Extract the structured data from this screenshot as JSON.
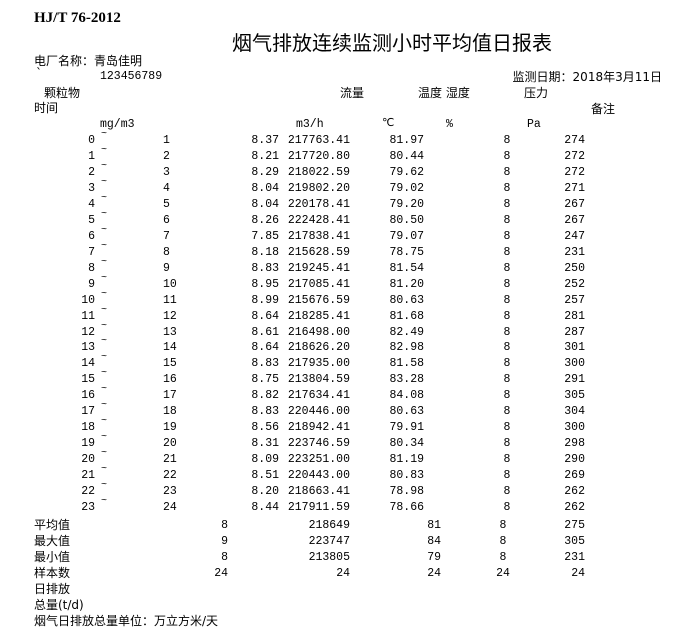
{
  "header": {
    "standard": "HJ/T 76-2012",
    "title": "烟气排放连续监测小时平均值日报表",
    "plant_label": "电厂名称：青岛佳明",
    "mark": "`",
    "id": "123456789",
    "date_label": "监测日期：2018年3月11日"
  },
  "columns": {
    "particulate": "颗粒物",
    "flow": "流量",
    "temp_humidity": "温度 湿度",
    "pressure": "压力",
    "time": "时间",
    "remark": "备注",
    "unit_particulate": "mg/m3",
    "unit_flow": "m3/h",
    "unit_temp": "℃",
    "unit_humidity": "%",
    "unit_pressure": "Pa"
  },
  "rows": [
    {
      "start": "0",
      "sep": "~",
      "end": "1",
      "particulate": "8.37",
      "flow": "217763.41",
      "temp": "81.97",
      "humidity": "8",
      "pressure": "274"
    },
    {
      "start": "1",
      "sep": "~",
      "end": "2",
      "particulate": "8.21",
      "flow": "217720.80",
      "temp": "80.44",
      "humidity": "8",
      "pressure": "272"
    },
    {
      "start": "2",
      "sep": "~",
      "end": "3",
      "particulate": "8.29",
      "flow": "218022.59",
      "temp": "79.62",
      "humidity": "8",
      "pressure": "272"
    },
    {
      "start": "3",
      "sep": "~",
      "end": "4",
      "particulate": "8.04",
      "flow": "219802.20",
      "temp": "79.02",
      "humidity": "8",
      "pressure": "271"
    },
    {
      "start": "4",
      "sep": "~",
      "end": "5",
      "particulate": "8.04",
      "flow": "220178.41",
      "temp": "79.20",
      "humidity": "8",
      "pressure": "267"
    },
    {
      "start": "5",
      "sep": "~",
      "end": "6",
      "particulate": "8.26",
      "flow": "222428.41",
      "temp": "80.50",
      "humidity": "8",
      "pressure": "267"
    },
    {
      "start": "6",
      "sep": "~",
      "end": "7",
      "particulate": "7.85",
      "flow": "217838.41",
      "temp": "79.07",
      "humidity": "8",
      "pressure": "247"
    },
    {
      "start": "7",
      "sep": "~",
      "end": "8",
      "particulate": "8.18",
      "flow": "215628.59",
      "temp": "78.75",
      "humidity": "8",
      "pressure": "231"
    },
    {
      "start": "8",
      "sep": "~",
      "end": "9",
      "particulate": "8.83",
      "flow": "219245.41",
      "temp": "81.54",
      "humidity": "8",
      "pressure": "250"
    },
    {
      "start": "9",
      "sep": "~",
      "end": "10",
      "particulate": "8.95",
      "flow": "217085.41",
      "temp": "81.20",
      "humidity": "8",
      "pressure": "252"
    },
    {
      "start": "10",
      "sep": "~",
      "end": "11",
      "particulate": "8.99",
      "flow": "215676.59",
      "temp": "80.63",
      "humidity": "8",
      "pressure": "257"
    },
    {
      "start": "11",
      "sep": "~",
      "end": "12",
      "particulate": "8.64",
      "flow": "218285.41",
      "temp": "81.68",
      "humidity": "8",
      "pressure": "281"
    },
    {
      "start": "12",
      "sep": "~",
      "end": "13",
      "particulate": "8.61",
      "flow": "216498.00",
      "temp": "82.49",
      "humidity": "8",
      "pressure": "287"
    },
    {
      "start": "13",
      "sep": "~",
      "end": "14",
      "particulate": "8.64",
      "flow": "218626.20",
      "temp": "82.98",
      "humidity": "8",
      "pressure": "301"
    },
    {
      "start": "14",
      "sep": "~",
      "end": "15",
      "particulate": "8.83",
      "flow": "217935.00",
      "temp": "81.58",
      "humidity": "8",
      "pressure": "300"
    },
    {
      "start": "15",
      "sep": "~",
      "end": "16",
      "particulate": "8.75",
      "flow": "213804.59",
      "temp": "83.28",
      "humidity": "8",
      "pressure": "291"
    },
    {
      "start": "16",
      "sep": "~",
      "end": "17",
      "particulate": "8.82",
      "flow": "217634.41",
      "temp": "84.08",
      "humidity": "8",
      "pressure": "305"
    },
    {
      "start": "17",
      "sep": "~",
      "end": "18",
      "particulate": "8.83",
      "flow": "220446.00",
      "temp": "80.63",
      "humidity": "8",
      "pressure": "304"
    },
    {
      "start": "18",
      "sep": "~",
      "end": "19",
      "particulate": "8.56",
      "flow": "218942.41",
      "temp": "79.91",
      "humidity": "8",
      "pressure": "300"
    },
    {
      "start": "19",
      "sep": "~",
      "end": "20",
      "particulate": "8.31",
      "flow": "223746.59",
      "temp": "80.34",
      "humidity": "8",
      "pressure": "298"
    },
    {
      "start": "20",
      "sep": "~",
      "end": "21",
      "particulate": "8.09",
      "flow": "223251.00",
      "temp": "81.19",
      "humidity": "8",
      "pressure": "290"
    },
    {
      "start": "21",
      "sep": "~",
      "end": "22",
      "particulate": "8.51",
      "flow": "220443.00",
      "temp": "80.83",
      "humidity": "8",
      "pressure": "269"
    },
    {
      "start": "22",
      "sep": "~",
      "end": "23",
      "particulate": "8.20",
      "flow": "218663.41",
      "temp": "78.98",
      "humidity": "8",
      "pressure": "262"
    },
    {
      "start": "23",
      "sep": "~",
      "end": "24",
      "particulate": "8.44",
      "flow": "217911.59",
      "temp": "78.66",
      "humidity": "8",
      "pressure": "262"
    }
  ],
  "summary": [
    {
      "label": "平均值",
      "particulate": "8",
      "flow": "218649",
      "temp": "81",
      "humidity": "8",
      "pressure": "275"
    },
    {
      "label": "最大值",
      "particulate": "9",
      "flow": "223747",
      "temp": "84",
      "humidity": "8",
      "pressure": "305"
    },
    {
      "label": "最小值",
      "particulate": "8",
      "flow": "213805",
      "temp": "79",
      "humidity": "8",
      "pressure": "231"
    },
    {
      "label": "样本数",
      "particulate": "24",
      "flow": "24",
      "temp": "24",
      "humidity": "24",
      "pressure": "24"
    }
  ],
  "footer": {
    "daily_emission": "日排放",
    "total": "总量(t/d)",
    "unit_note": "烟气日排放总量单位：万立方米/天"
  }
}
